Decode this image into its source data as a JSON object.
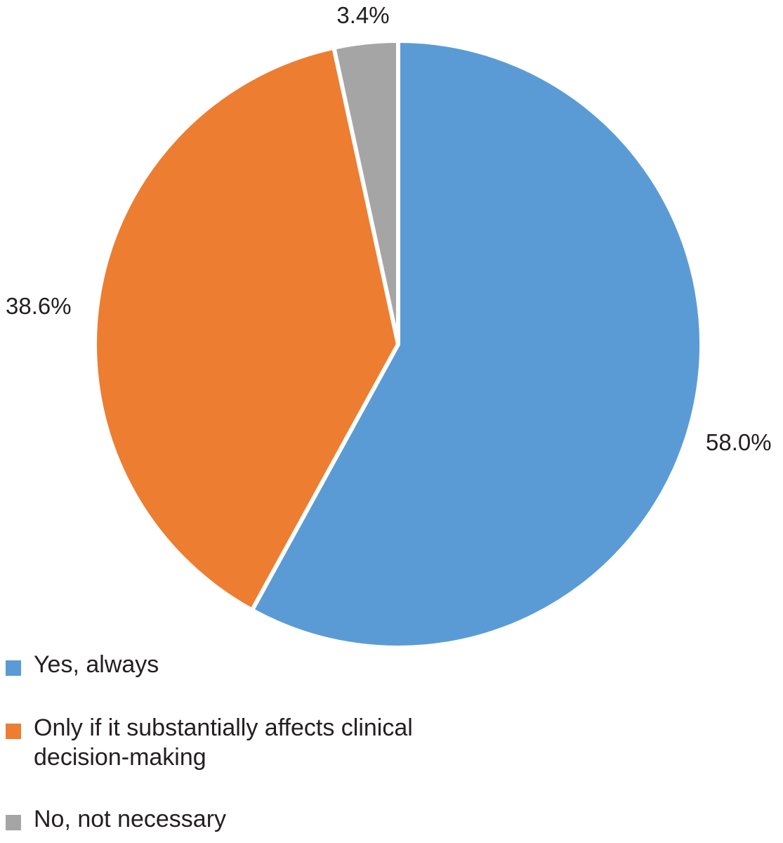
{
  "chart_data": {
    "type": "pie",
    "title": "",
    "categories": [
      "Yes, always",
      "Only if it substantially affects clinical decision-making",
      "No, not necessary"
    ],
    "values": [
      58.0,
      38.6,
      3.4
    ],
    "value_labels": [
      "58.0%",
      "38.6%",
      "3.4%"
    ],
    "colors": [
      "#5b9bd5",
      "#ed7d31",
      "#a5a5a5"
    ],
    "start": "12 o'clock, clockwise",
    "legend_position": "bottom-left"
  },
  "legend": {
    "items": [
      {
        "label": "Yes, always",
        "color": "#5b9bd5"
      },
      {
        "label": "Only if it substantially affects clinical decision-making",
        "color": "#ed7d31"
      },
      {
        "label": "No, not necessary",
        "color": "#a5a5a5"
      }
    ]
  }
}
